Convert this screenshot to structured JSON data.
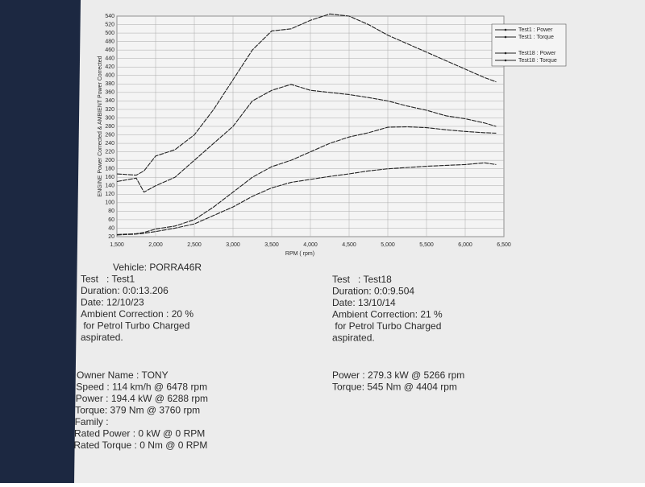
{
  "chart_data": {
    "type": "line",
    "x_label": "RPM ( rpm)",
    "y_label": "ENGINE Power Corrected & AMBIENT Power Corrected",
    "x": [
      1500,
      1750,
      1850,
      2000,
      2250,
      2500,
      2750,
      3000,
      3250,
      3500,
      3750,
      4000,
      4250,
      4500,
      4750,
      5000,
      5250,
      5500,
      5750,
      6000,
      6250,
      6400
    ],
    "series": [
      {
        "name": "Test1 : Power",
        "color": "#222222",
        "values": [
          24,
          26,
          28,
          32,
          40,
          50,
          70,
          90,
          115,
          135,
          148,
          155,
          162,
          168,
          175,
          180,
          183,
          186,
          188,
          190,
          194,
          190
        ]
      },
      {
        "name": "Test1 : Torque",
        "color": "#222222",
        "values": [
          150,
          158,
          125,
          140,
          160,
          200,
          240,
          280,
          340,
          365,
          379,
          365,
          360,
          355,
          348,
          340,
          328,
          318,
          305,
          298,
          288,
          280
        ]
      },
      {
        "name": "Test18 : Power",
        "color": "#222222",
        "values": [
          25,
          27,
          30,
          38,
          45,
          60,
          90,
          125,
          160,
          185,
          200,
          220,
          240,
          255,
          265,
          278,
          279,
          277,
          272,
          268,
          265,
          264
        ]
      },
      {
        "name": "Test18 : Torque",
        "color": "#222222",
        "values": [
          168,
          165,
          175,
          210,
          225,
          260,
          320,
          390,
          460,
          505,
          510,
          530,
          545,
          540,
          520,
          495,
          475,
          455,
          435,
          415,
          395,
          385
        ]
      }
    ],
    "xlim": [
      1500,
      6500
    ],
    "xticks": [
      {
        "value": 1500,
        "label": "1,500"
      },
      {
        "value": 2000,
        "label": "2,000"
      },
      {
        "value": 2500,
        "label": "2,500"
      },
      {
        "value": 3000,
        "label": "3,000"
      },
      {
        "value": 3500,
        "label": "3,500"
      },
      {
        "value": 4000,
        "label": "4,000"
      },
      {
        "value": 4500,
        "label": "4,500"
      },
      {
        "value": 5000,
        "label": "5,000"
      },
      {
        "value": 5500,
        "label": "5,500"
      },
      {
        "value": 6000,
        "label": "6,000"
      },
      {
        "value": 6500,
        "label": "6,500"
      }
    ],
    "ylim": [
      20,
      540
    ],
    "yticks": [
      20,
      40,
      60,
      80,
      100,
      120,
      140,
      160,
      180,
      200,
      220,
      240,
      260,
      280,
      300,
      320,
      340,
      360,
      380,
      400,
      420,
      440,
      460,
      480,
      500,
      520,
      540
    ],
    "grid": true,
    "legend": "upper right"
  },
  "report": {
    "left": [
      "Vehicle: PORRA46R",
      "Test   : Test1",
      "Duration: 0:0:13.206",
      "Date: 12/10/23",
      "Ambient Correction : 20 %",
      " for Petrol Turbo Charged",
      "aspirated."
    ],
    "right": [
      "Test   : Test18",
      "Duration: 0:0:9.504",
      "Date: 13/10/14",
      "Ambient Correction: 21 %",
      " for Petrol Turbo Charged",
      "aspirated."
    ],
    "owner": [
      "Owner Name : TONY",
      "Speed : 114 km/h @ 6478 rpm",
      "Power : 194.4 kW @ 6288 rpm",
      "Torque: 379 Nm @ 3760 rpm",
      "Family :",
      "Rated Power : 0 kW @ 0 RPM",
      "Rated Torque : 0 Nm @ 0 RPM"
    ],
    "peaks": [
      "Power : 279.3 kW @ 5266 rpm",
      "Torque: 545 Nm @ 4404 rpm"
    ]
  }
}
